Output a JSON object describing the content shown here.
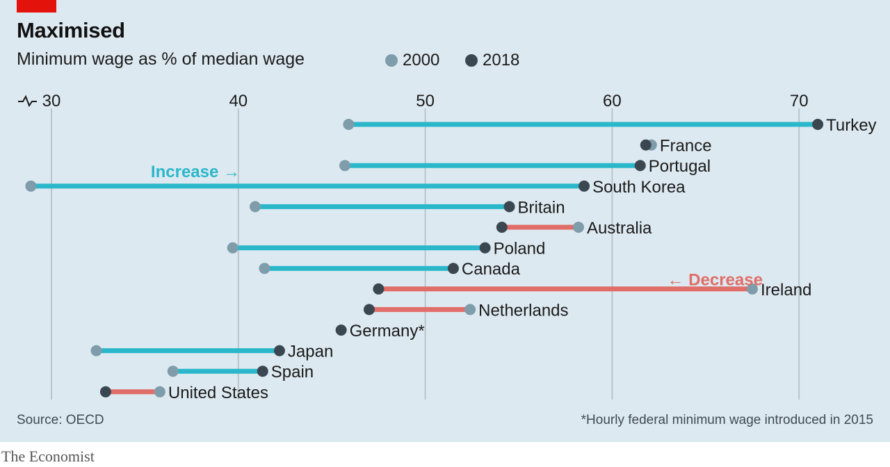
{
  "header": {
    "title": "Maximised",
    "subtitle": "Minimum wage as % of median wage"
  },
  "legend": {
    "items": [
      {
        "label": "2000",
        "color": "#7f9cab"
      },
      {
        "label": "2018",
        "color": "#3b4750"
      }
    ]
  },
  "footer": {
    "source": "Source: OECD",
    "footnote": "*Hourly federal minimum wage introduced in 2015",
    "brand": "The Economist"
  },
  "colors": {
    "increase": "#2ab7ca",
    "decrease": "#e06d68",
    "dot_2000": "#7f9cab",
    "dot_2018": "#3b4750",
    "grid": "#b9c5cc",
    "background": "#dde9f0"
  },
  "chart_data": {
    "type": "dumbbell",
    "x_ticks": [
      30,
      40,
      50,
      60,
      70
    ],
    "xlim": [
      28.5,
      72.5
    ],
    "axis_break_marker": true,
    "annotations": [
      {
        "text": "Increase →",
        "color": "#2ab7ca",
        "x": 37.7,
        "row": 2.3
      },
      {
        "text": "← Decrease",
        "color": "#e06d68",
        "x": 65.5,
        "row": 7.55
      }
    ],
    "rows": [
      {
        "country": "Turkey",
        "v2000": 45.9,
        "v2018": 71.0
      },
      {
        "country": "France",
        "v2000": 62.1,
        "v2018": 61.8
      },
      {
        "country": "Portugal",
        "v2000": 45.7,
        "v2018": 61.5
      },
      {
        "country": "South Korea",
        "v2000": 28.9,
        "v2018": 58.5
      },
      {
        "country": "Britain",
        "v2000": 40.9,
        "v2018": 54.5
      },
      {
        "country": "Australia",
        "v2000": 58.2,
        "v2018": 54.1
      },
      {
        "country": "Poland",
        "v2000": 39.7,
        "v2018": 53.2
      },
      {
        "country": "Canada",
        "v2000": 41.4,
        "v2018": 51.5
      },
      {
        "country": "Ireland",
        "v2000": 67.5,
        "v2018": 47.5
      },
      {
        "country": "Netherlands",
        "v2000": 52.4,
        "v2018": 47.0
      },
      {
        "country": "Germany*",
        "v2000": null,
        "v2018": 45.5
      },
      {
        "country": "Japan",
        "v2000": 32.4,
        "v2018": 42.2
      },
      {
        "country": "Spain",
        "v2000": 36.5,
        "v2018": 41.3
      },
      {
        "country": "United States",
        "v2000": 35.8,
        "v2018": 32.9
      }
    ]
  }
}
